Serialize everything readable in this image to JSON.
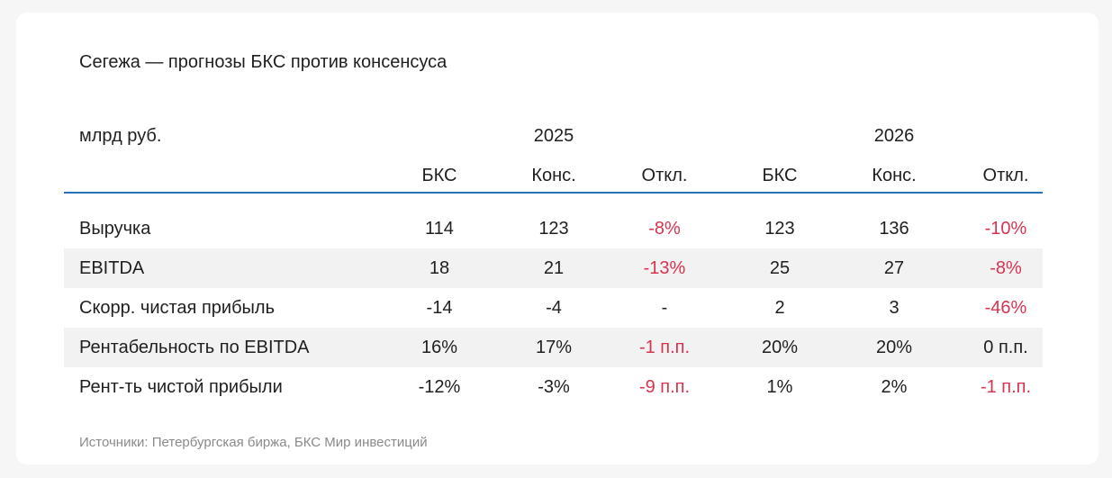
{
  "title": "Сегежа — прогнозы БКС против консенсуса",
  "unit_label": "млрд руб.",
  "years": [
    "2025",
    "2026"
  ],
  "column_headers": [
    "БКС",
    "Конс.",
    "Откл.",
    "БКС",
    "Конс.",
    "Откл."
  ],
  "accent_color": "#2c6fb6",
  "negative_color": "#d8344f",
  "rows": [
    {
      "label": "Выручка",
      "values": [
        "114",
        "123",
        "-8%",
        "123",
        "136",
        "-10%"
      ],
      "negative": [
        false,
        false,
        true,
        false,
        false,
        true
      ]
    },
    {
      "label": "EBITDA",
      "values": [
        "18",
        "21",
        "-13%",
        "25",
        "27",
        "-8%"
      ],
      "negative": [
        false,
        false,
        true,
        false,
        false,
        true
      ]
    },
    {
      "label": "Скорр. чистая прибыль",
      "values": [
        "-14",
        "-4",
        "-",
        "2",
        "3",
        "-46%"
      ],
      "negative": [
        false,
        false,
        false,
        false,
        false,
        true
      ]
    },
    {
      "label": "Рентабельность по EBITDA",
      "values": [
        "16%",
        "17%",
        "-1 п.п.",
        "20%",
        "20%",
        "0 п.п."
      ],
      "negative": [
        false,
        false,
        true,
        false,
        false,
        false
      ]
    },
    {
      "label": "Рент-ть чистой прибыли",
      "values": [
        "-12%",
        "-3%",
        "-9 п.п.",
        "1%",
        "2%",
        "-1 п.п."
      ],
      "negative": [
        false,
        false,
        true,
        false,
        false,
        true
      ]
    }
  ],
  "footer": "Источники: Петербургская биржа, БКС Мир инвестиций"
}
